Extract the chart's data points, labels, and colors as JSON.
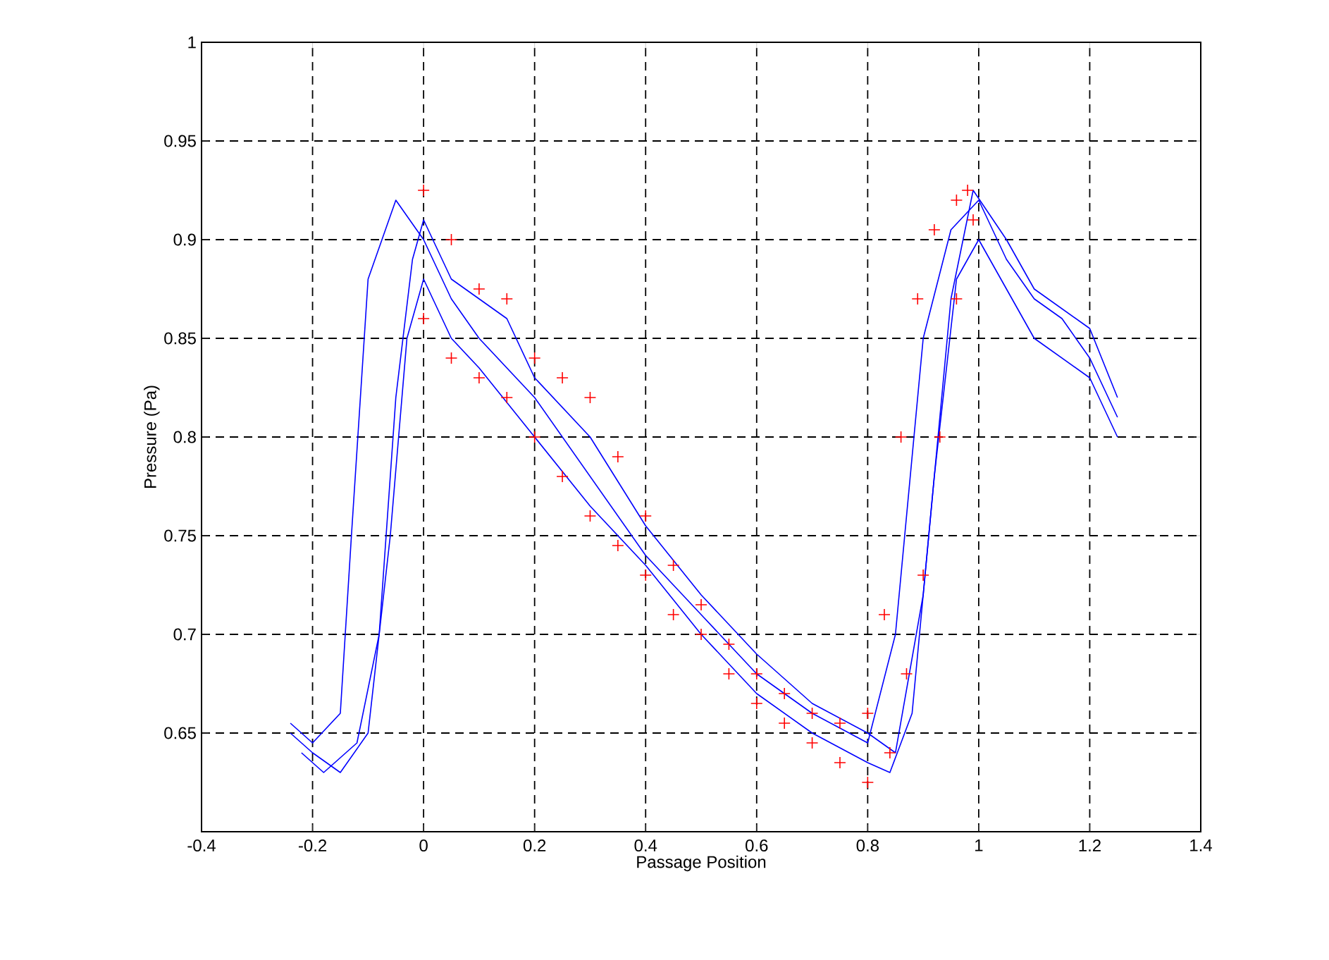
{
  "chart_data": {
    "type": "line",
    "xlabel": "Passage Position",
    "ylabel": "Pressure (Pa)",
    "xlim": [
      -0.4,
      1.4
    ],
    "ylim": [
      0.6,
      1
    ],
    "xticks": [
      -0.4,
      -0.2,
      0,
      0.2,
      0.4,
      0.6,
      0.8,
      1,
      1.2,
      1.4
    ],
    "yticks": [
      0.65,
      0.7,
      0.75,
      0.8,
      0.85,
      0.9,
      0.95,
      1
    ],
    "grid": true,
    "marker": "none",
    "line_style": "solid",
    "series": [
      {
        "color": "#0000ff",
        "x": [
          -0.24,
          -0.2,
          -0.15,
          -0.13,
          -0.1,
          -0.05,
          0,
          0.05,
          0.1,
          0.2,
          0.3,
          0.4,
          0.5,
          0.6,
          0.7,
          0.8,
          0.85,
          0.9,
          0.95,
          1.0,
          1.05,
          1.1,
          1.15,
          1.2,
          1.25
        ],
        "values": [
          0.655,
          0.645,
          0.66,
          0.75,
          0.88,
          0.92,
          0.9,
          0.87,
          0.85,
          0.82,
          0.78,
          0.74,
          0.71,
          0.68,
          0.66,
          0.645,
          0.7,
          0.85,
          0.905,
          0.92,
          0.89,
          0.87,
          0.86,
          0.84,
          0.81
        ]
      },
      {
        "color": "#0000ff",
        "x": [
          -0.22,
          -0.18,
          -0.12,
          -0.08,
          -0.05,
          -0.02,
          0,
          0.05,
          0.1,
          0.15,
          0.2,
          0.3,
          0.4,
          0.5,
          0.6,
          0.7,
          0.8,
          0.85,
          0.9,
          0.95,
          0.99,
          1.05,
          1.1,
          1.2,
          1.25
        ],
        "values": [
          0.64,
          0.63,
          0.645,
          0.7,
          0.82,
          0.89,
          0.91,
          0.88,
          0.87,
          0.86,
          0.83,
          0.8,
          0.755,
          0.72,
          0.69,
          0.665,
          0.65,
          0.64,
          0.72,
          0.87,
          0.925,
          0.9,
          0.875,
          0.855,
          0.82
        ]
      },
      {
        "color": "#0000ff",
        "x": [
          -0.24,
          -0.2,
          -0.15,
          -0.1,
          -0.06,
          -0.03,
          0,
          0.05,
          0.1,
          0.2,
          0.3,
          0.4,
          0.5,
          0.6,
          0.7,
          0.8,
          0.84,
          0.88,
          0.92,
          0.96,
          1.0,
          1.05,
          1.1,
          1.2,
          1.25
        ],
        "values": [
          0.65,
          0.64,
          0.63,
          0.65,
          0.75,
          0.85,
          0.88,
          0.85,
          0.835,
          0.8,
          0.765,
          0.735,
          0.7,
          0.67,
          0.65,
          0.635,
          0.63,
          0.66,
          0.78,
          0.88,
          0.9,
          0.875,
          0.85,
          0.83,
          0.8
        ]
      },
      {
        "type": "scatter",
        "marker": "cross",
        "color": "#ff0000",
        "x": [
          0,
          0.05,
          0.1,
          0.15,
          0.2,
          0.25,
          0.3,
          0.35,
          0.4,
          0.45,
          0.5,
          0.55,
          0.6,
          0.65,
          0.7,
          0.75,
          0.8,
          0.83,
          0.86,
          0.89,
          0.92,
          0.96,
          0.98
        ],
        "values": [
          0.925,
          0.9,
          0.875,
          0.87,
          0.84,
          0.83,
          0.82,
          0.79,
          0.76,
          0.735,
          0.715,
          0.695,
          0.68,
          0.67,
          0.66,
          0.655,
          0.66,
          0.71,
          0.8,
          0.87,
          0.905,
          0.92,
          0.925
        ]
      },
      {
        "type": "scatter",
        "marker": "cross",
        "color": "#ff0000",
        "x": [
          0,
          0.05,
          0.1,
          0.15,
          0.2,
          0.25,
          0.3,
          0.35,
          0.4,
          0.45,
          0.5,
          0.55,
          0.6,
          0.65,
          0.7,
          0.75,
          0.8,
          0.84,
          0.87,
          0.9,
          0.93,
          0.96,
          0.99
        ],
        "values": [
          0.86,
          0.84,
          0.83,
          0.82,
          0.8,
          0.78,
          0.76,
          0.745,
          0.73,
          0.71,
          0.7,
          0.68,
          0.665,
          0.655,
          0.645,
          0.635,
          0.625,
          0.64,
          0.68,
          0.73,
          0.8,
          0.87,
          0.91
        ]
      }
    ]
  }
}
